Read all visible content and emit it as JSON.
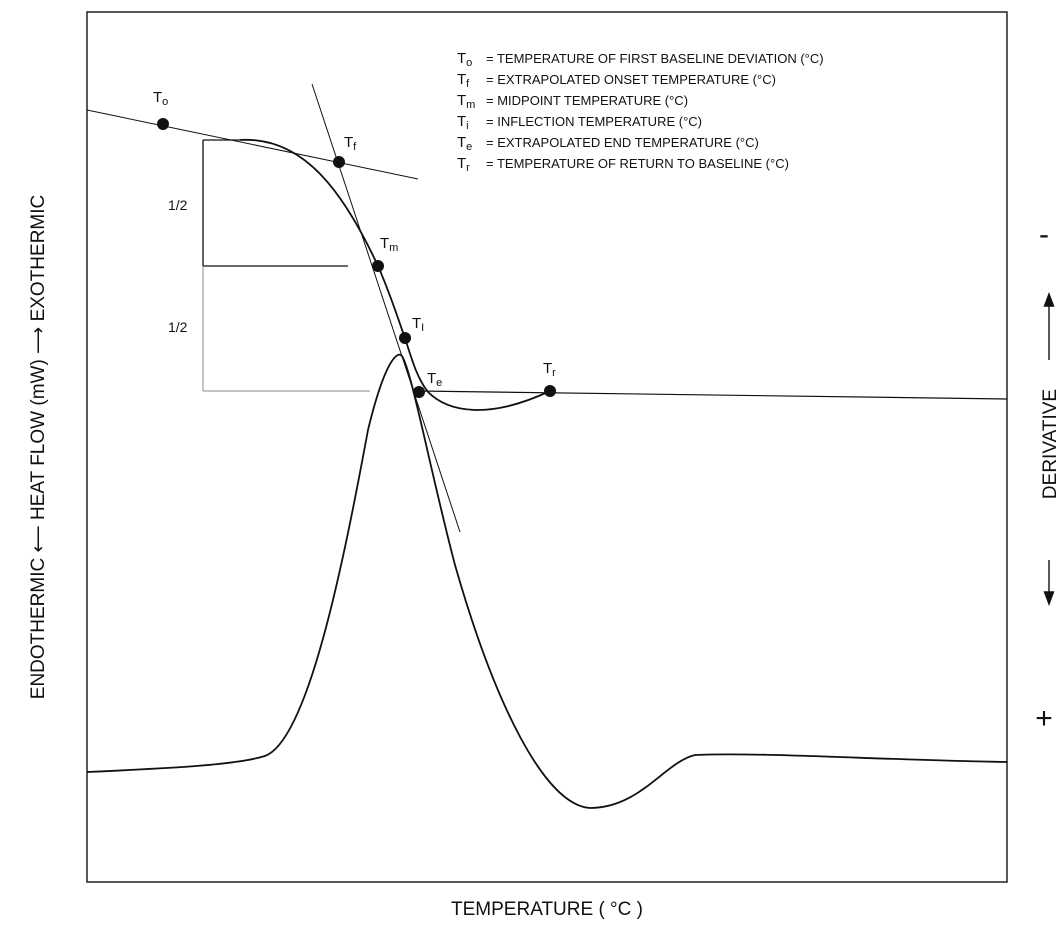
{
  "axes": {
    "x_label": "TEMPERATURE ( °C )",
    "y_left_label": "ENDOTHERMIC ⟵ HEAT FLOW (mW) ⟶ EXOTHERMIC",
    "y_right_label": "DERIVATIVE",
    "right_sign_top": "-",
    "right_sign_bottom": "+"
  },
  "fractions": {
    "upper": "1/2",
    "lower": "1/2"
  },
  "points": [
    {
      "id": "o",
      "main": "T",
      "sub": "o"
    },
    {
      "id": "f",
      "main": "T",
      "sub": "f"
    },
    {
      "id": "m",
      "main": "T",
      "sub": "m"
    },
    {
      "id": "i",
      "main": "T",
      "sub": "I"
    },
    {
      "id": "e",
      "main": "T",
      "sub": "e"
    },
    {
      "id": "r",
      "main": "T",
      "sub": "r"
    }
  ],
  "legend": [
    {
      "main": "T",
      "sub": "o",
      "text": "= TEMPERATURE OF FIRST BASELINE DEVIATION (°C)"
    },
    {
      "main": "T",
      "sub": "f",
      "text": "= EXTRAPOLATED ONSET TEMPERATURE (°C)"
    },
    {
      "main": "T",
      "sub": "m",
      "text": "= MIDPOINT TEMPERATURE (°C)"
    },
    {
      "main": "T",
      "sub": "i",
      "text": "= INFLECTION TEMPERATURE (°C)"
    },
    {
      "main": "T",
      "sub": "e",
      "text": "= EXTRAPOLATED END TEMPERATURE (°C)"
    },
    {
      "main": "T",
      "sub": "r",
      "text": "= TEMPERATURE OF RETURN TO BASELINE (°C)"
    }
  ]
}
